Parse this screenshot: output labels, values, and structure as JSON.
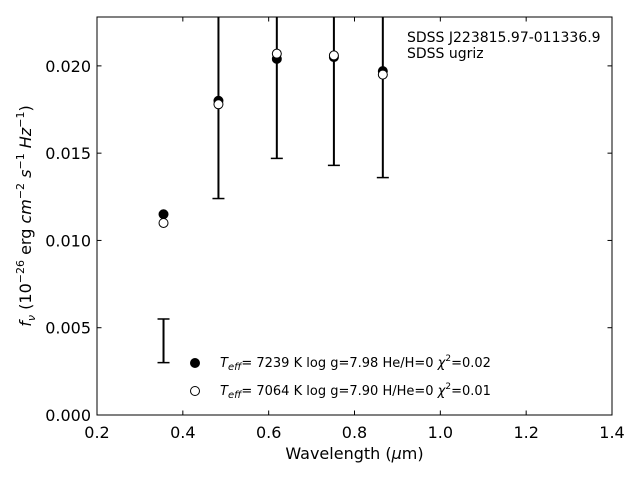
{
  "chart_data": {
    "type": "scatter",
    "xlabel": "Wavelength (μm)",
    "ylabel": "f_ν (10^-26 erg cm^-2 s^-1 Hz^-1)",
    "xlim": [
      0.2,
      1.4
    ],
    "ylim": [
      0.0,
      0.0228
    ],
    "x_ticks": [
      0.2,
      0.4,
      0.6,
      0.8,
      1.0,
      1.2,
      1.4
    ],
    "x_tick_labels": [
      "0.2",
      "0.4",
      "0.6",
      "0.8",
      "1.0",
      "1.2",
      "1.4"
    ],
    "y_ticks": [
      0.0,
      0.005,
      0.01,
      0.015,
      0.02
    ],
    "y_tick_labels": [
      "0.000",
      "0.005",
      "0.010",
      "0.015",
      "0.020"
    ],
    "grid": false,
    "annotations": [
      "SDSS J223815.97-011336.9",
      "SDSS ugriz"
    ],
    "observed": {
      "x": [
        0.355,
        0.483,
        0.619,
        0.752,
        0.866
      ],
      "y_low": [
        0.003,
        0.0124,
        0.0147,
        0.0143,
        0.0136
      ],
      "y_high": [
        0.0055,
        0.0228,
        0.0228,
        0.0228,
        0.0228
      ]
    },
    "series": [
      {
        "name": "T_eff= 7239 K log g=7.98 He/H=0 χ²=0.02",
        "marker": "filled-circle",
        "x": [
          0.355,
          0.483,
          0.619,
          0.752,
          0.866
        ],
        "y": [
          0.0115,
          0.018,
          0.0204,
          0.0205,
          0.0197
        ]
      },
      {
        "name": "T_eff= 7064 K log g=7.90 H/He=0 χ²=0.01",
        "marker": "open-circle",
        "x": [
          0.355,
          0.483,
          0.619,
          0.752,
          0.866
        ],
        "y": [
          0.011,
          0.0178,
          0.0207,
          0.0206,
          0.0195
        ]
      }
    ],
    "legend": {
      "placement": "lower-center",
      "entries": [
        {
          "teff": "7239 K",
          "logg": "log g=7.98",
          "comp": "He/H=0",
          "chi2": "=0.02"
        },
        {
          "teff": "7064 K",
          "logg": "log g=7.90",
          "comp": "H/He=0",
          "chi2": "=0.01"
        }
      ]
    }
  }
}
